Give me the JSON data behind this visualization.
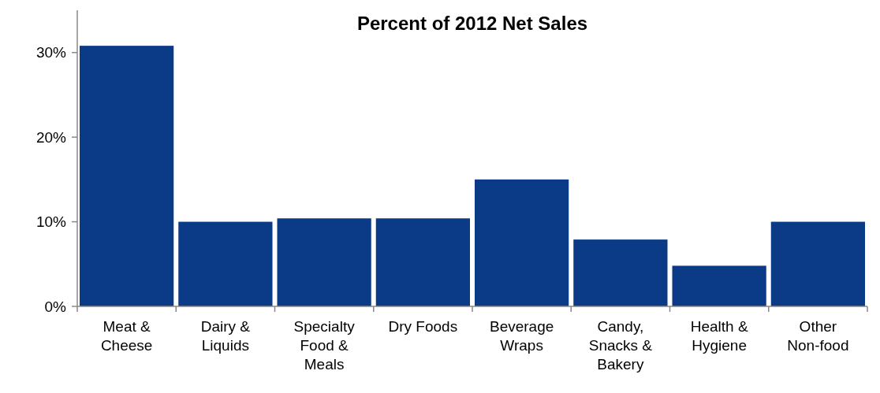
{
  "chart_data": {
    "type": "bar",
    "title": "Percent of 2012 Net Sales",
    "categories": [
      "Meat & Cheese",
      "Dairy & Liquids",
      "Specialty Food & Meals",
      "Dry Foods",
      "Beverage Wraps",
      "Candy, Snacks & Bakery",
      "Health & Hygiene",
      "Other Non-food"
    ],
    "values": [
      30.8,
      10.0,
      10.4,
      10.4,
      15.0,
      7.9,
      4.8,
      10.0
    ],
    "color": "#0b3a86",
    "ylim": [
      0,
      35
    ],
    "yticks": [
      {
        "value": 0,
        "label": "0%"
      },
      {
        "value": 10,
        "label": "10%"
      },
      {
        "value": 20,
        "label": "20%"
      },
      {
        "value": 30,
        "label": "30%"
      }
    ],
    "grid": false
  }
}
